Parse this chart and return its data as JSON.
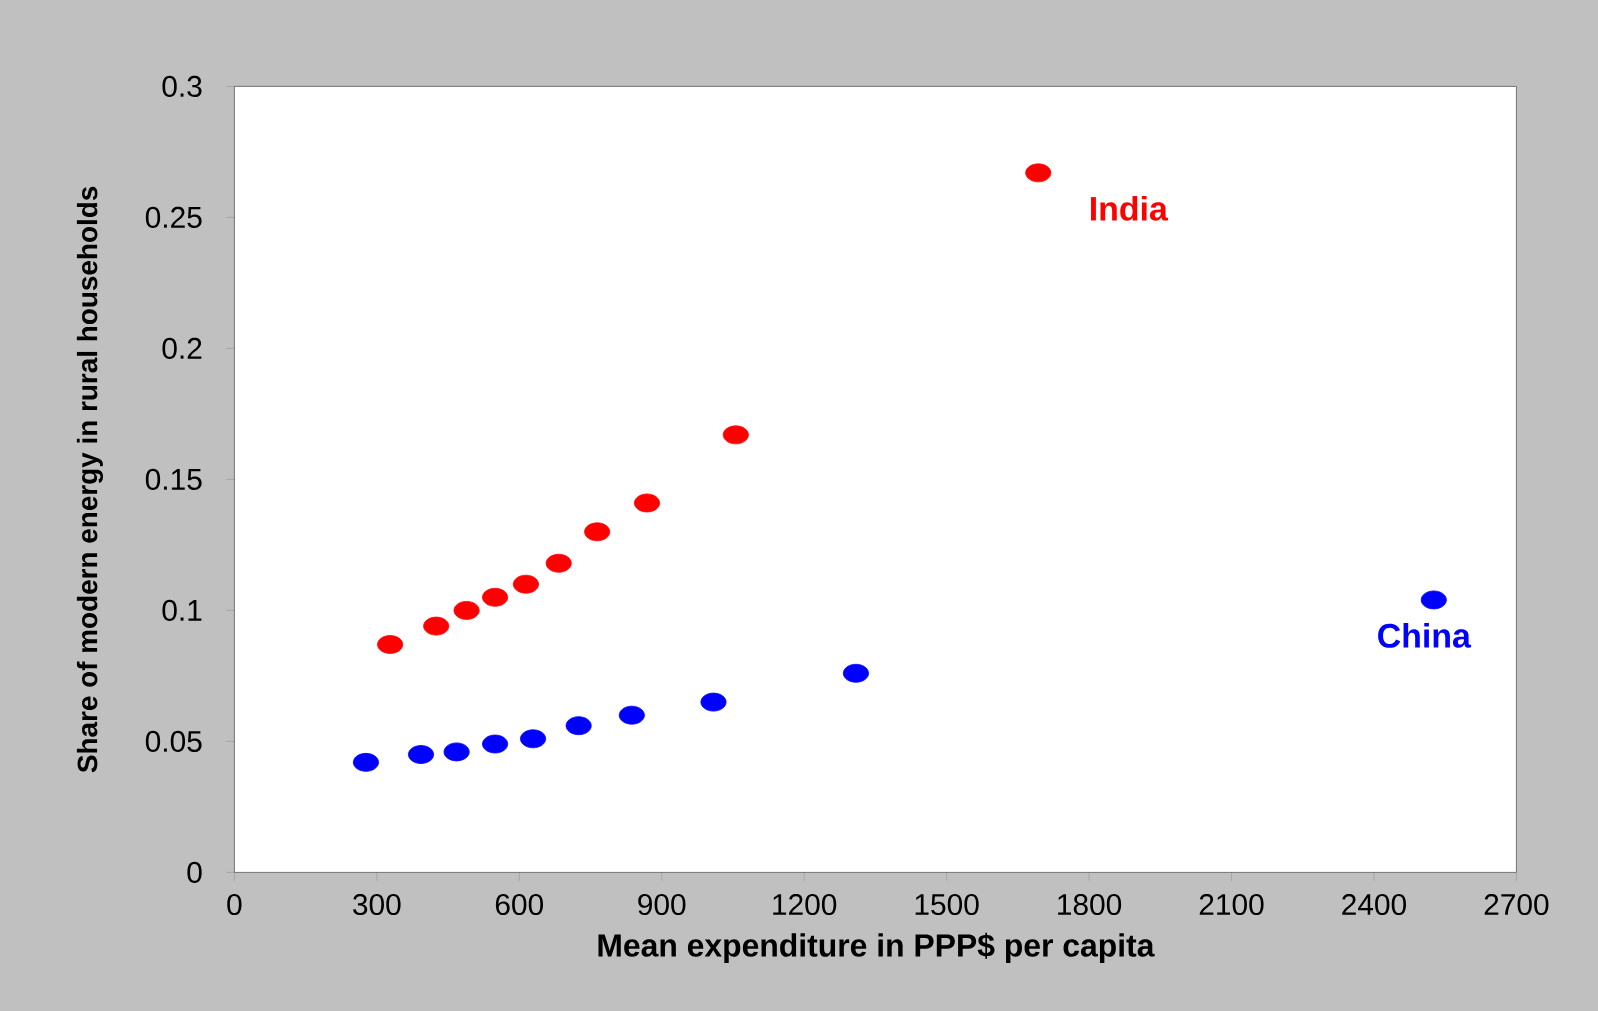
{
  "chart_data": {
    "type": "scatter",
    "xlabel": "Mean expenditure in PPP$ per capita",
    "ylabel": "Share of modern energy in rural households",
    "xlim": [
      0,
      2700
    ],
    "ylim": [
      0,
      0.3
    ],
    "xticks": [
      0,
      300,
      600,
      900,
      1200,
      1500,
      1800,
      2100,
      2400,
      2700
    ],
    "yticks": [
      0,
      0.05,
      0.1,
      0.15,
      0.2,
      0.25,
      0.3
    ],
    "marker": "circle",
    "series": [
      {
        "name": "India",
        "color": "#ff0000",
        "x": [
          328,
          425,
          489,
          549,
          614,
          683,
          764,
          869,
          1056,
          1693
        ],
        "values": [
          0.087,
          0.094,
          0.1,
          0.105,
          0.11,
          0.118,
          0.13,
          0.141,
          0.167,
          0.267
        ]
      },
      {
        "name": "China",
        "color": "#0000ff",
        "x": [
          277,
          393,
          468,
          549,
          629,
          725,
          837,
          1009,
          1309,
          2526
        ],
        "values": [
          0.042,
          0.045,
          0.046,
          0.049,
          0.051,
          0.056,
          0.06,
          0.065,
          0.076,
          0.104
        ]
      }
    ]
  }
}
